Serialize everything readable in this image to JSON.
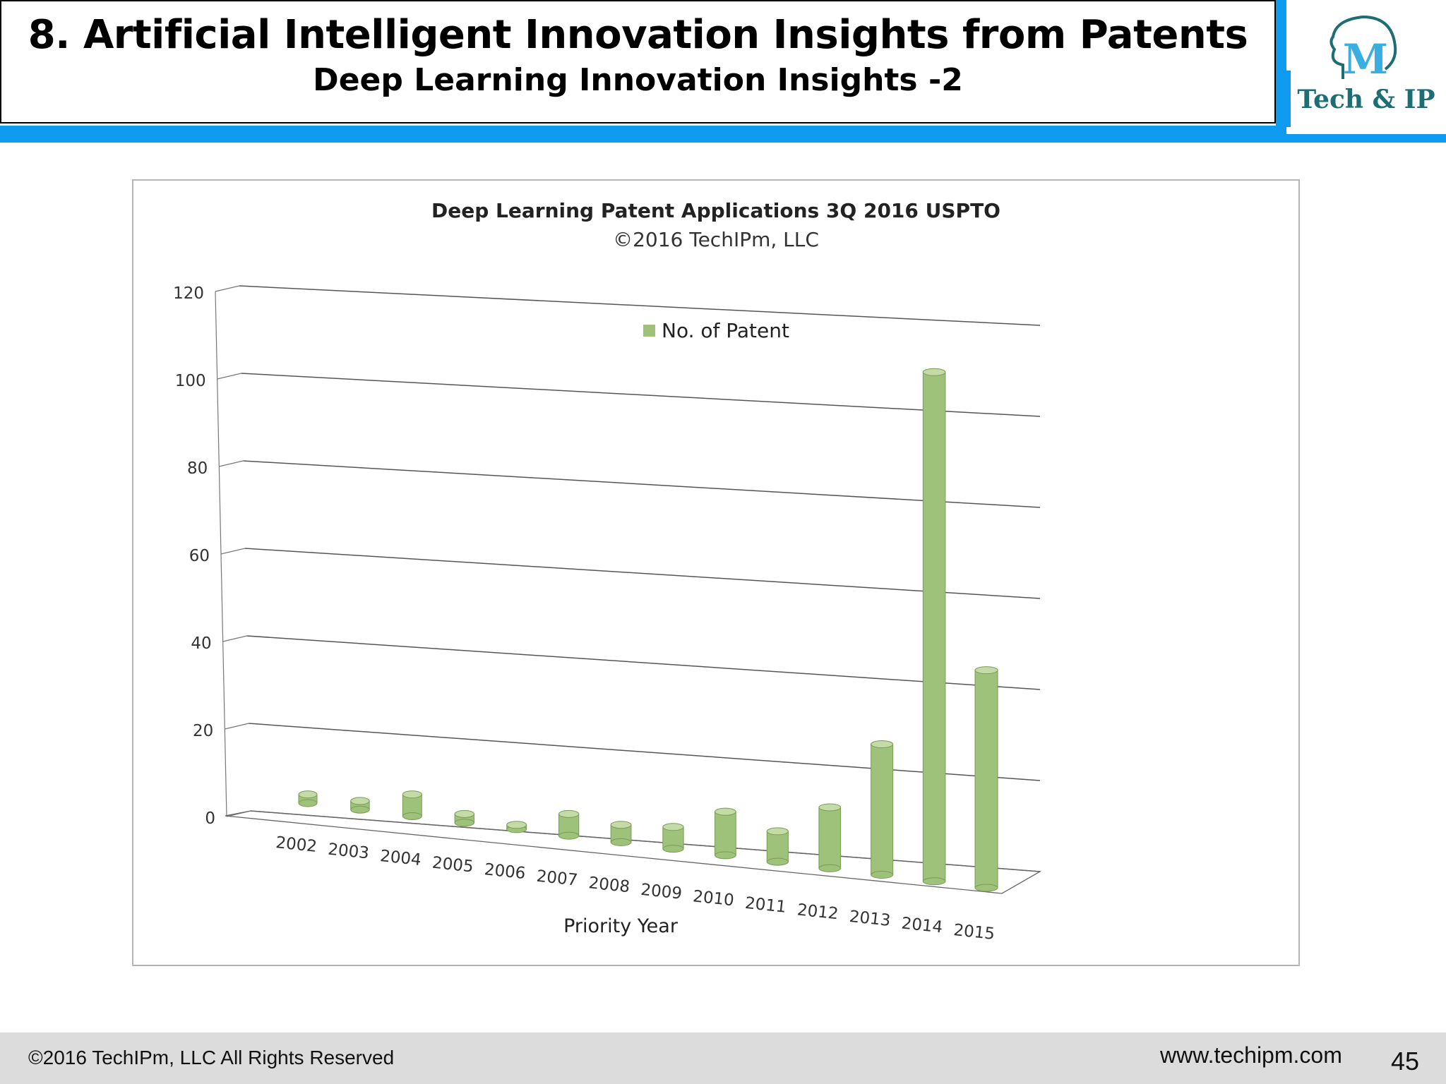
{
  "header": {
    "title": "8. Artificial Intelligent Innovation Insights from Patents",
    "subtitle": "Deep Learning Innovation Insights -2"
  },
  "logo": {
    "mark": "M",
    "text": "Tech & IP"
  },
  "chart_data": {
    "type": "bar",
    "title": "Deep Learning Patent Applications 3Q 2016 USPTO",
    "subtitle": "©2016 TechIPm, LLC",
    "xlabel": "Priority Year",
    "ylabel": "",
    "ylim": [
      0,
      120
    ],
    "yticks": [
      "0",
      "20",
      "40",
      "60",
      "80",
      "100",
      "120"
    ],
    "categories": [
      "2002",
      "2003",
      "2004",
      "2005",
      "2006",
      "2007",
      "2008",
      "2009",
      "2010",
      "2011",
      "2012",
      "2013",
      "2014",
      "2015"
    ],
    "series": [
      {
        "name": "No. of Patent",
        "values": [
          2,
          2,
          5,
          2,
          1,
          5,
          4,
          5,
          10,
          7,
          14,
          30,
          117,
          50
        ]
      }
    ],
    "legend_position": "top",
    "grid": true,
    "bar_color": "#9fc27a"
  },
  "footer": {
    "copyright": "©2016 TechIPm, LLC All Rights Reserved",
    "url": "www.techipm.com",
    "page": "45"
  }
}
